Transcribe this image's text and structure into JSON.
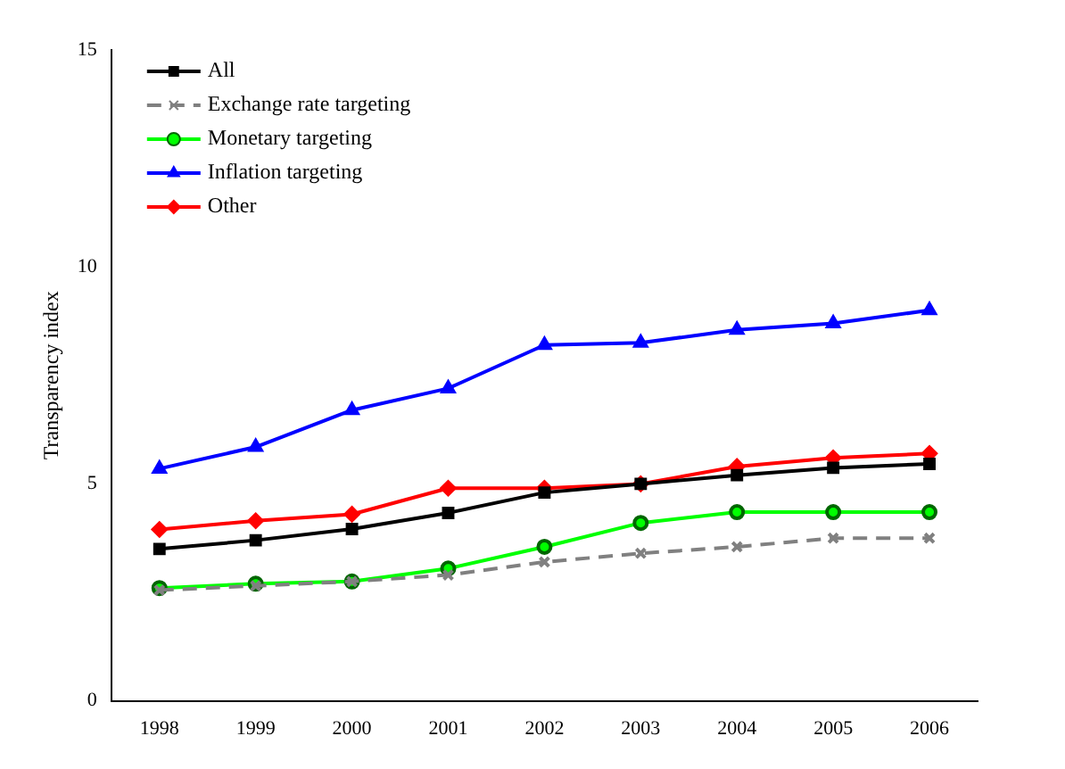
{
  "chart_data": {
    "type": "line",
    "ylabel": "Transparency index",
    "categories": [
      "1998",
      "1999",
      "2000",
      "2001",
      "2002",
      "2003",
      "2004",
      "2005",
      "2006"
    ],
    "series": [
      {
        "name": "All",
        "color": "#000000",
        "marker": "square",
        "line_style": "solid",
        "values": [
          3.5,
          3.7,
          3.96,
          4.33,
          4.8,
          5.0,
          5.2,
          5.37,
          5.46
        ]
      },
      {
        "name": "Exchange rate targeting",
        "color": "#808080",
        "marker": "cross",
        "line_style": "dashed",
        "values": [
          2.55,
          2.65,
          2.75,
          2.9,
          3.2,
          3.4,
          3.55,
          3.75,
          3.75
        ]
      },
      {
        "name": "Monetary targeting",
        "color": "#00ff00",
        "marker": "circle",
        "line_style": "solid",
        "values": [
          2.6,
          2.7,
          2.75,
          3.05,
          3.55,
          4.1,
          4.35,
          4.35,
          4.35
        ]
      },
      {
        "name": "Inflation targeting",
        "color": "#0000ff",
        "marker": "triangle",
        "line_style": "solid",
        "values": [
          5.35,
          5.85,
          6.7,
          7.2,
          8.2,
          8.25,
          8.55,
          8.7,
          9.0
        ]
      },
      {
        "name": "Other",
        "color": "#ff0000",
        "marker": "diamond",
        "line_style": "solid",
        "values": [
          3.95,
          4.15,
          4.3,
          4.9,
          4.9,
          5.0,
          5.4,
          5.6,
          5.7
        ]
      }
    ],
    "ylim": [
      0,
      15
    ],
    "yticks": [
      0,
      5,
      10,
      15
    ],
    "grid": false,
    "legend": "top left"
  }
}
